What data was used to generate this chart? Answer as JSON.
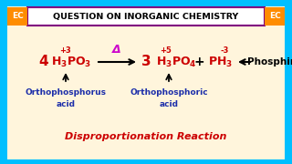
{
  "title": "QUESTION ON INORGANIC CHEMISTRY",
  "title_color": "#000000",
  "title_bg": "#ffffff",
  "title_border": "#800080",
  "outer_bg": "#00BFFF",
  "inner_bg": "#FFF5DC",
  "ec_label": "EC",
  "ec_bg": "#FF8C00",
  "ec_text_color": "#ffffff",
  "reaction_label_bottom": "Disproportionation Reaction",
  "reaction_label_color": "#CC0000",
  "oxidation_3": "+3",
  "oxidation_5": "+5",
  "oxidation_neg3": "-3",
  "delta_label": "Δ",
  "delta_color": "#CC00CC",
  "label1": "Orthophosphorus\nacid",
  "label2": "Orthophosphoric\nacid",
  "label_color": "#1C2EAA",
  "phosphine": "Phosphine",
  "phosphine_color": "#000000",
  "formula_color": "#CC0000",
  "black": "#000000"
}
